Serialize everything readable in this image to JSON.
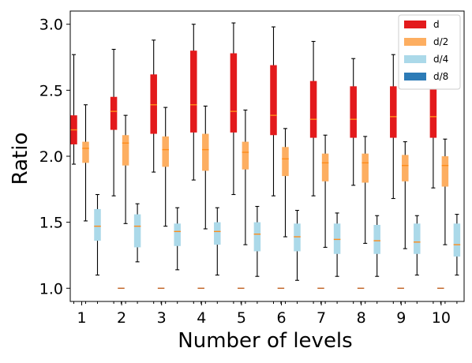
{
  "chart_data": {
    "type": "boxplot",
    "title": "",
    "xlabel": "Number of levels",
    "ylabel": "Ratio",
    "ylim": [
      0.9,
      3.1
    ],
    "yticks": [
      "1.0",
      "1.5",
      "2.0",
      "2.5",
      "3.0"
    ],
    "categories": [
      "1",
      "2",
      "3",
      "4",
      "5",
      "6",
      "7",
      "8",
      "9",
      "10"
    ],
    "grid": false,
    "legend_placement": "top-right",
    "colors": {
      "d": "#e31a1c",
      "d/2": "#fdae61",
      "d/4": "#abd9e9",
      "d/8": "#2c7bb6",
      "median_d8": "#c06020",
      "median": "#ff8c1a",
      "whisker": "#000000",
      "axis": "#000000"
    },
    "series": [
      {
        "name": "d",
        "stats": [
          {
            "whislo": 1.94,
            "q1": 2.09,
            "med": 2.2,
            "q3": 2.31,
            "whishi": 2.77
          },
          {
            "whislo": 1.7,
            "q1": 2.2,
            "med": 2.34,
            "q3": 2.45,
            "whishi": 2.81
          },
          {
            "whislo": 1.88,
            "q1": 2.17,
            "med": 2.39,
            "q3": 2.62,
            "whishi": 2.88
          },
          {
            "whislo": 1.82,
            "q1": 2.18,
            "med": 2.39,
            "q3": 2.8,
            "whishi": 3.0
          },
          {
            "whislo": 1.71,
            "q1": 2.18,
            "med": 2.34,
            "q3": 2.78,
            "whishi": 3.01
          },
          {
            "whislo": 1.7,
            "q1": 2.16,
            "med": 2.31,
            "q3": 2.69,
            "whishi": 2.98
          },
          {
            "whislo": 1.7,
            "q1": 2.14,
            "med": 2.28,
            "q3": 2.57,
            "whishi": 2.87
          },
          {
            "whislo": 1.78,
            "q1": 2.14,
            "med": 2.28,
            "q3": 2.53,
            "whishi": 2.74
          },
          {
            "whislo": 1.68,
            "q1": 2.14,
            "med": 2.3,
            "q3": 2.53,
            "whishi": 2.77
          },
          {
            "whislo": 1.76,
            "q1": 2.14,
            "med": 2.3,
            "q3": 2.53,
            "whishi": 2.7
          }
        ]
      },
      {
        "name": "d/2",
        "stats": [
          {
            "whislo": 1.51,
            "q1": 1.95,
            "med": 2.06,
            "q3": 2.11,
            "whishi": 2.39
          },
          {
            "whislo": 1.49,
            "q1": 1.93,
            "med": 2.1,
            "q3": 2.16,
            "whishi": 2.31
          },
          {
            "whislo": 1.47,
            "q1": 1.92,
            "med": 2.05,
            "q3": 2.15,
            "whishi": 2.37
          },
          {
            "whislo": 1.45,
            "q1": 1.89,
            "med": 2.05,
            "q3": 2.17,
            "whishi": 2.38
          },
          {
            "whislo": 1.33,
            "q1": 1.9,
            "med": 2.03,
            "q3": 2.11,
            "whishi": 2.35
          },
          {
            "whislo": 1.39,
            "q1": 1.85,
            "med": 1.98,
            "q3": 2.07,
            "whishi": 2.21
          },
          {
            "whislo": 1.31,
            "q1": 1.81,
            "med": 1.95,
            "q3": 2.02,
            "whishi": 2.16
          },
          {
            "whislo": 1.34,
            "q1": 1.8,
            "med": 1.95,
            "q3": 2.02,
            "whishi": 2.15
          },
          {
            "whislo": 1.3,
            "q1": 1.81,
            "med": 1.93,
            "q3": 2.01,
            "whishi": 2.11
          },
          {
            "whislo": 1.33,
            "q1": 1.77,
            "med": 1.93,
            "q3": 2.0,
            "whishi": 2.13
          }
        ]
      },
      {
        "name": "d/4",
        "stats": [
          {
            "whislo": 1.1,
            "q1": 1.36,
            "med": 1.47,
            "q3": 1.6,
            "whishi": 1.71
          },
          {
            "whislo": 1.2,
            "q1": 1.31,
            "med": 1.47,
            "q3": 1.56,
            "whishi": 1.64
          },
          {
            "whislo": 1.14,
            "q1": 1.32,
            "med": 1.43,
            "q3": 1.49,
            "whishi": 1.61
          },
          {
            "whislo": 1.1,
            "q1": 1.33,
            "med": 1.43,
            "q3": 1.5,
            "whishi": 1.61
          },
          {
            "whislo": 1.09,
            "q1": 1.28,
            "med": 1.41,
            "q3": 1.5,
            "whishi": 1.62
          },
          {
            "whislo": 1.06,
            "q1": 1.28,
            "med": 1.39,
            "q3": 1.49,
            "whishi": 1.59
          },
          {
            "whislo": 1.09,
            "q1": 1.26,
            "med": 1.37,
            "q3": 1.49,
            "whishi": 1.57
          },
          {
            "whislo": 1.09,
            "q1": 1.26,
            "med": 1.36,
            "q3": 1.48,
            "whishi": 1.55
          },
          {
            "whislo": 1.1,
            "q1": 1.26,
            "med": 1.35,
            "q3": 1.49,
            "whishi": 1.55
          },
          {
            "whislo": 1.1,
            "q1": 1.24,
            "med": 1.33,
            "q3": 1.49,
            "whishi": 1.56
          }
        ]
      },
      {
        "name": "d/8",
        "stats": [
          {
            "whislo": 1.0,
            "q1": 1.0,
            "med": 1.0,
            "q3": 1.0,
            "whishi": 1.0
          },
          {
            "whislo": 1.0,
            "q1": 1.0,
            "med": 1.0,
            "q3": 1.0,
            "whishi": 1.0
          },
          {
            "whislo": 1.0,
            "q1": 1.0,
            "med": 1.0,
            "q3": 1.0,
            "whishi": 1.0
          },
          {
            "whislo": 1.0,
            "q1": 1.0,
            "med": 1.0,
            "q3": 1.0,
            "whishi": 1.0
          },
          {
            "whislo": 1.0,
            "q1": 1.0,
            "med": 1.0,
            "q3": 1.0,
            "whishi": 1.0
          },
          {
            "whislo": 1.0,
            "q1": 1.0,
            "med": 1.0,
            "q3": 1.0,
            "whishi": 1.0
          },
          {
            "whislo": 1.0,
            "q1": 1.0,
            "med": 1.0,
            "q3": 1.0,
            "whishi": 1.0
          },
          {
            "whislo": 1.0,
            "q1": 1.0,
            "med": 1.0,
            "q3": 1.0,
            "whishi": 1.0
          },
          {
            "whislo": 1.0,
            "q1": 1.0,
            "med": 1.0,
            "q3": 1.0,
            "whishi": 1.0
          },
          {
            "whislo": 1.0,
            "q1": 1.0,
            "med": 1.0,
            "q3": 1.0,
            "whishi": 1.0
          }
        ]
      }
    ]
  }
}
